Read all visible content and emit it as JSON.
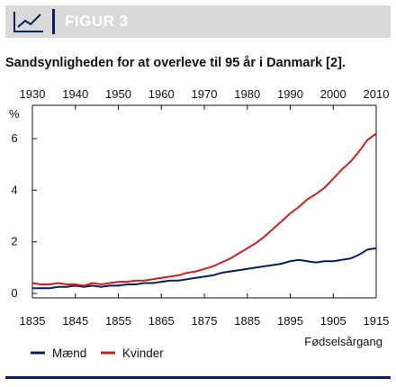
{
  "header": {
    "title": "FIGUR 3",
    "icon": "line-chart-icon",
    "background": "#d9d9d9",
    "accent": "#0a1f5c"
  },
  "chart_data": {
    "type": "line",
    "title": "Sandsynligheden for at overleve til 95 år i Danmark [2].",
    "xlabel": "Fødselsårgang",
    "ylabel": "%",
    "xlim": [
      1930,
      2010
    ],
    "ylim": [
      0,
      7
    ],
    "top_axis_ticks": [
      "1930",
      "1940",
      "1950",
      "1960",
      "1970",
      "1980",
      "1990",
      "2000",
      "2010"
    ],
    "bottom_axis_ticks": [
      "1835",
      "1845",
      "1855",
      "1865",
      "1875",
      "1885",
      "1895",
      "1905",
      "1915"
    ],
    "y_ticks": [
      "0",
      "2",
      "4",
      "6"
    ],
    "grid": false,
    "legend_position": "bottom",
    "series": [
      {
        "name": "Mænd",
        "color": "#0a1f5c",
        "x": [
          1930,
          1932,
          1934,
          1936,
          1938,
          1940,
          1942,
          1944,
          1946,
          1948,
          1950,
          1952,
          1954,
          1956,
          1958,
          1960,
          1962,
          1964,
          1966,
          1968,
          1970,
          1972,
          1974,
          1976,
          1978,
          1980,
          1982,
          1984,
          1986,
          1988,
          1990,
          1992,
          1994,
          1996,
          1998,
          2000,
          2002,
          2004,
          2006,
          2008,
          2010
        ],
        "y": [
          0.2,
          0.2,
          0.2,
          0.25,
          0.25,
          0.3,
          0.25,
          0.3,
          0.25,
          0.3,
          0.3,
          0.35,
          0.35,
          0.4,
          0.4,
          0.45,
          0.5,
          0.5,
          0.55,
          0.6,
          0.65,
          0.7,
          0.8,
          0.85,
          0.9,
          0.95,
          1.0,
          1.05,
          1.1,
          1.15,
          1.25,
          1.3,
          1.25,
          1.2,
          1.25,
          1.25,
          1.3,
          1.35,
          1.5,
          1.7,
          1.75
        ]
      },
      {
        "name": "Kvinder",
        "color": "#cc1f1f",
        "x": [
          1930,
          1932,
          1934,
          1936,
          1938,
          1940,
          1942,
          1944,
          1946,
          1948,
          1950,
          1952,
          1954,
          1956,
          1958,
          1960,
          1962,
          1964,
          1966,
          1968,
          1970,
          1972,
          1974,
          1976,
          1978,
          1980,
          1982,
          1984,
          1986,
          1988,
          1990,
          1992,
          1994,
          1996,
          1998,
          2000,
          2002,
          2004,
          2006,
          2008,
          2010
        ],
        "y": [
          0.4,
          0.35,
          0.35,
          0.4,
          0.35,
          0.35,
          0.3,
          0.4,
          0.35,
          0.4,
          0.45,
          0.45,
          0.5,
          0.5,
          0.55,
          0.6,
          0.65,
          0.7,
          0.8,
          0.85,
          0.95,
          1.05,
          1.2,
          1.35,
          1.55,
          1.75,
          1.95,
          2.2,
          2.5,
          2.8,
          3.1,
          3.35,
          3.65,
          3.85,
          4.1,
          4.45,
          4.8,
          5.1,
          5.5,
          5.95,
          6.2
        ]
      }
    ]
  }
}
